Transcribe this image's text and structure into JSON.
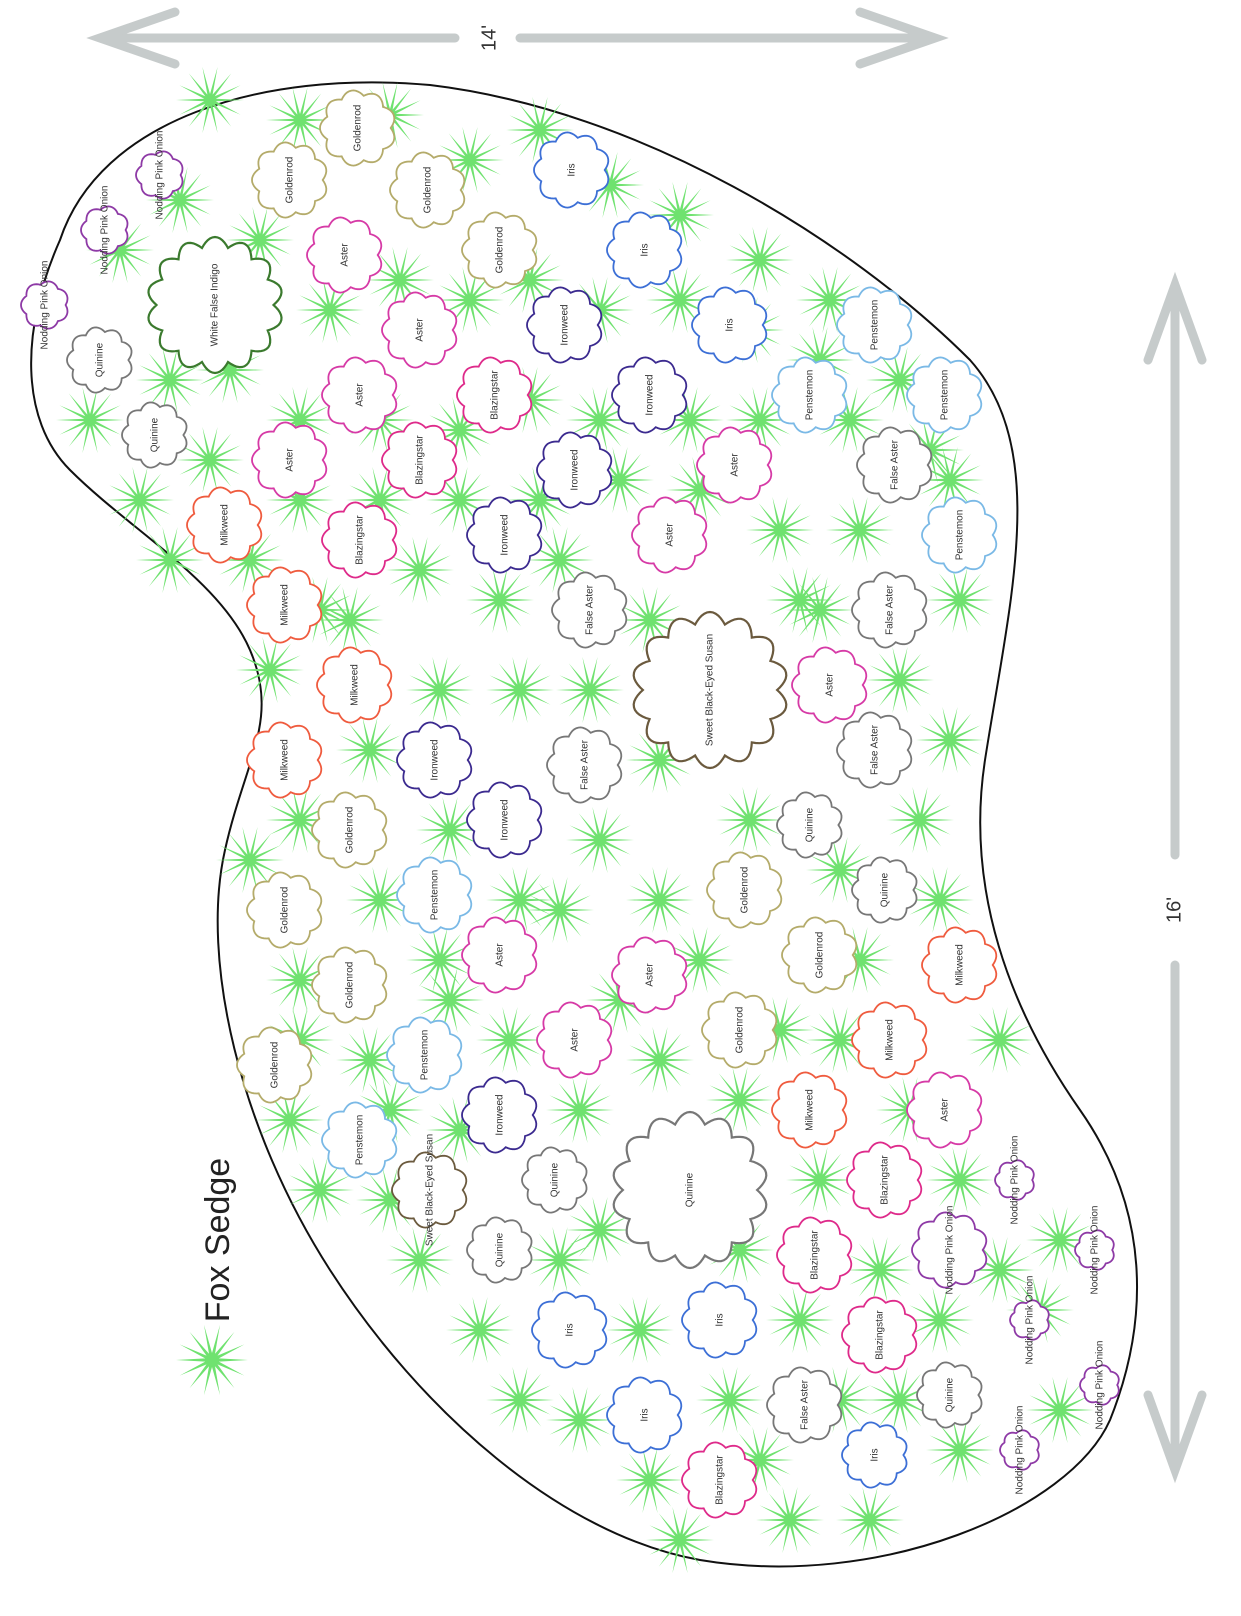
{
  "dimensions": {
    "width_label": "14'",
    "length_label": "16'"
  },
  "legend": {
    "label": "Fox Sedge",
    "icon": "sedge-star-icon",
    "color": "#6fe26f"
  },
  "colors": {
    "Goldenrod": "#b4ab6a",
    "Aster": "#d63aa6",
    "Milkweed": "#ef5b3e",
    "Blazingstar": "#de2a8a",
    "Ironweed": "#3b2a8f",
    "Iris": "#3c6fd6",
    "Penstemon": "#7ab9e6",
    "False Aster": "#777777",
    "Quinine": "#777777",
    "Nodding Pink Onion": "#8e3aa6",
    "Sweet Black-Eyed Susan": "#6b5a3e",
    "White False Indigo": "#3b7a2e",
    "sedge": "#6fe26f",
    "arrow": "#c6cbcb",
    "bed_outline": "#111111"
  },
  "plants": [
    {
      "name": "Goldenrod"
    },
    {
      "name": "Goldenrod"
    },
    {
      "name": "Goldenrod"
    },
    {
      "name": "Goldenrod"
    },
    {
      "name": "Iris"
    },
    {
      "name": "Iris"
    },
    {
      "name": "Iris"
    },
    {
      "name": "Aster"
    },
    {
      "name": "Aster"
    },
    {
      "name": "Aster"
    },
    {
      "name": "Aster"
    },
    {
      "name": "Ironweed"
    },
    {
      "name": "Ironweed"
    },
    {
      "name": "Ironweed"
    },
    {
      "name": "Ironweed"
    },
    {
      "name": "Penstemon"
    },
    {
      "name": "Penstemon"
    },
    {
      "name": "Penstemon"
    },
    {
      "name": "Penstemon"
    },
    {
      "name": "Blazingstar"
    },
    {
      "name": "Blazingstar"
    },
    {
      "name": "Blazingstar"
    },
    {
      "name": "Milkweed"
    },
    {
      "name": "Milkweed"
    },
    {
      "name": "Milkweed"
    },
    {
      "name": "Milkweed"
    },
    {
      "name": "Quinine"
    },
    {
      "name": "Quinine"
    },
    {
      "name": "Nodding Pink Onion"
    },
    {
      "name": "Nodding Pink Onion"
    },
    {
      "name": "Nodding Pink Onion"
    },
    {
      "name": "White False Indigo"
    },
    {
      "name": "Aster"
    },
    {
      "name": "Aster"
    },
    {
      "name": "False Aster"
    },
    {
      "name": "False Aster"
    },
    {
      "name": "Sweet Black-Eyed Susan"
    },
    {
      "name": "Aster"
    },
    {
      "name": "False Aster"
    },
    {
      "name": "False Aster"
    },
    {
      "name": "False Aster"
    },
    {
      "name": "Quinine"
    },
    {
      "name": "Quinine"
    },
    {
      "name": "Goldenrod"
    },
    {
      "name": "Goldenrod"
    },
    {
      "name": "Goldenrod"
    },
    {
      "name": "Goldenrod"
    },
    {
      "name": "Goldenrod"
    },
    {
      "name": "Goldenrod"
    },
    {
      "name": "Goldenrod"
    },
    {
      "name": "Milkweed"
    },
    {
      "name": "Milkweed"
    },
    {
      "name": "Milkweed"
    },
    {
      "name": "Aster"
    },
    {
      "name": "Aster"
    },
    {
      "name": "Aster"
    },
    {
      "name": "Aster"
    },
    {
      "name": "Ironweed"
    },
    {
      "name": "Ironweed"
    },
    {
      "name": "Ironweed"
    },
    {
      "name": "Penstemon"
    },
    {
      "name": "Penstemon"
    },
    {
      "name": "Penstemon"
    },
    {
      "name": "Sweet Black-Eyed Susan"
    },
    {
      "name": "Quinine"
    },
    {
      "name": "Quinine"
    },
    {
      "name": "Quinine"
    },
    {
      "name": "Quinine"
    },
    {
      "name": "Iris"
    },
    {
      "name": "Iris"
    },
    {
      "name": "Iris"
    },
    {
      "name": "Iris"
    },
    {
      "name": "Blazingstar"
    },
    {
      "name": "Blazingstar"
    },
    {
      "name": "Blazingstar"
    },
    {
      "name": "Blazingstar"
    },
    {
      "name": "False Aster"
    },
    {
      "name": "Nodding Pink Onion"
    },
    {
      "name": "Nodding Pink Onion"
    },
    {
      "name": "Nodding Pink Onion"
    },
    {
      "name": "Nodding Pink Onion"
    },
    {
      "name": "Nodding Pink Onion"
    },
    {
      "name": "Nodding Pink Onion"
    }
  ]
}
